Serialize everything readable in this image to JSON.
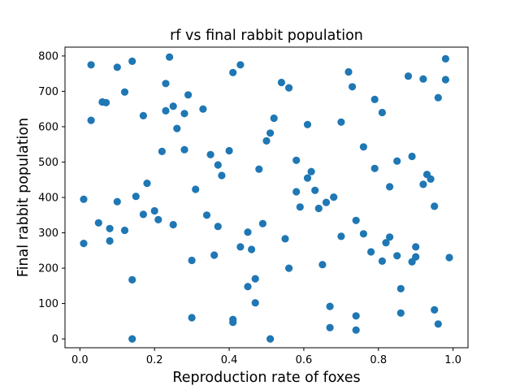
{
  "chart_data": {
    "type": "scatter",
    "title": "rf vs final rabbit population",
    "xlabel": "Reproduction rate of foxes",
    "ylabel": "Final rabbit population",
    "xlim": [
      -0.04,
      1.04
    ],
    "ylim": [
      -25,
      825
    ],
    "xticks": [
      "0.0",
      "0.2",
      "0.4",
      "0.6",
      "0.8",
      "1.0"
    ],
    "yticks": [
      "0",
      "100",
      "200",
      "300",
      "400",
      "500",
      "600",
      "700",
      "800"
    ],
    "grid": false,
    "marker_color": "#1f77b4",
    "series": [
      {
        "points": [
          [
            0.01,
            395
          ],
          [
            0.01,
            270
          ],
          [
            0.03,
            775
          ],
          [
            0.03,
            618
          ],
          [
            0.05,
            328
          ],
          [
            0.06,
            670
          ],
          [
            0.07,
            668
          ],
          [
            0.08,
            312
          ],
          [
            0.08,
            277
          ],
          [
            0.1,
            768
          ],
          [
            0.1,
            388
          ],
          [
            0.12,
            698
          ],
          [
            0.12,
            307
          ],
          [
            0.14,
            785
          ],
          [
            0.14,
            167
          ],
          [
            0.14,
            0
          ],
          [
            0.15,
            403
          ],
          [
            0.17,
            631
          ],
          [
            0.17,
            352
          ],
          [
            0.18,
            440
          ],
          [
            0.2,
            362
          ],
          [
            0.21,
            337
          ],
          [
            0.22,
            530
          ],
          [
            0.23,
            645
          ],
          [
            0.23,
            722
          ],
          [
            0.24,
            797
          ],
          [
            0.25,
            658
          ],
          [
            0.25,
            323
          ],
          [
            0.26,
            595
          ],
          [
            0.28,
            637
          ],
          [
            0.28,
            535
          ],
          [
            0.29,
            690
          ],
          [
            0.3,
            222
          ],
          [
            0.3,
            60
          ],
          [
            0.31,
            423
          ],
          [
            0.33,
            650
          ],
          [
            0.34,
            350
          ],
          [
            0.35,
            521
          ],
          [
            0.36,
            237
          ],
          [
            0.37,
            318
          ],
          [
            0.37,
            492
          ],
          [
            0.38,
            462
          ],
          [
            0.4,
            532
          ],
          [
            0.41,
            753
          ],
          [
            0.41,
            55
          ],
          [
            0.41,
            47
          ],
          [
            0.43,
            775
          ],
          [
            0.43,
            260
          ],
          [
            0.45,
            302
          ],
          [
            0.45,
            148
          ],
          [
            0.46,
            253
          ],
          [
            0.47,
            170
          ],
          [
            0.47,
            102
          ],
          [
            0.48,
            480
          ],
          [
            0.49,
            326
          ],
          [
            0.5,
            560
          ],
          [
            0.51,
            582
          ],
          [
            0.51,
            0
          ],
          [
            0.52,
            624
          ],
          [
            0.54,
            725
          ],
          [
            0.55,
            283
          ],
          [
            0.56,
            710
          ],
          [
            0.56,
            200
          ],
          [
            0.58,
            505
          ],
          [
            0.58,
            416
          ],
          [
            0.59,
            373
          ],
          [
            0.61,
            455
          ],
          [
            0.61,
            606
          ],
          [
            0.62,
            473
          ],
          [
            0.63,
            420
          ],
          [
            0.64,
            369
          ],
          [
            0.65,
            210
          ],
          [
            0.66,
            386
          ],
          [
            0.67,
            92
          ],
          [
            0.67,
            32
          ],
          [
            0.68,
            401
          ],
          [
            0.7,
            290
          ],
          [
            0.7,
            613
          ],
          [
            0.72,
            755
          ],
          [
            0.73,
            713
          ],
          [
            0.74,
            335
          ],
          [
            0.74,
            65
          ],
          [
            0.74,
            25
          ],
          [
            0.76,
            543
          ],
          [
            0.76,
            297
          ],
          [
            0.78,
            246
          ],
          [
            0.79,
            482
          ],
          [
            0.79,
            677
          ],
          [
            0.81,
            220
          ],
          [
            0.81,
            640
          ],
          [
            0.82,
            272
          ],
          [
            0.83,
            288
          ],
          [
            0.83,
            430
          ],
          [
            0.85,
            235
          ],
          [
            0.85,
            503
          ],
          [
            0.86,
            142
          ],
          [
            0.86,
            73
          ],
          [
            0.88,
            743
          ],
          [
            0.89,
            218
          ],
          [
            0.89,
            516
          ],
          [
            0.9,
            232
          ],
          [
            0.9,
            260
          ],
          [
            0.92,
            437
          ],
          [
            0.92,
            735
          ],
          [
            0.93,
            465
          ],
          [
            0.94,
            452
          ],
          [
            0.95,
            375
          ],
          [
            0.95,
            82
          ],
          [
            0.96,
            682
          ],
          [
            0.96,
            42
          ],
          [
            0.98,
            792
          ],
          [
            0.98,
            733
          ],
          [
            0.99,
            230
          ]
        ]
      }
    ]
  }
}
